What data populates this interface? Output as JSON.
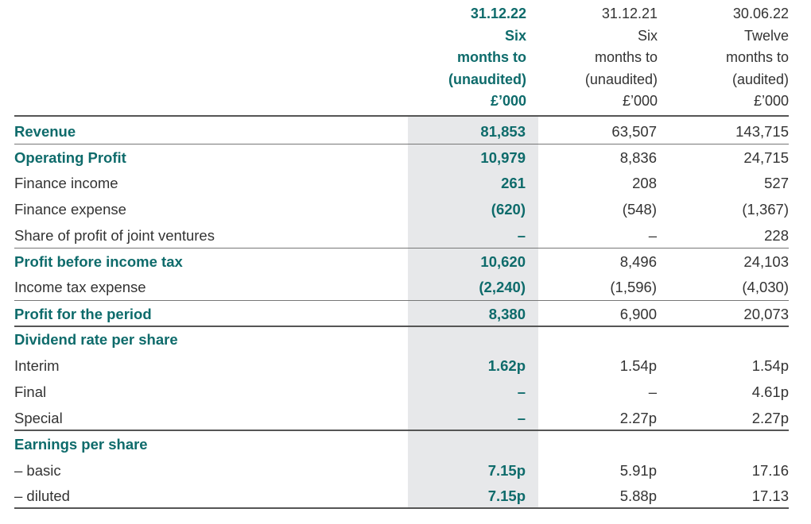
{
  "columns": [
    {
      "date": "31.12.22",
      "l1": "Six",
      "l2": "months to",
      "l3": "(unaudited)",
      "unit": "£’000"
    },
    {
      "date": "31.12.21",
      "l1": "Six",
      "l2": "months to",
      "l3": "(unaudited)",
      "unit": "£’000"
    },
    {
      "date": "30.06.22",
      "l1": "Twelve",
      "l2": "months to",
      "l3": "(audited)",
      "unit": "£’000"
    }
  ],
  "rows": [
    {
      "label": "Revenue",
      "v1": "81,853",
      "v2": "63,507",
      "v3": "143,715"
    },
    {
      "label": "Operating Profit",
      "v1": "10,979",
      "v2": "8,836",
      "v3": "24,715"
    },
    {
      "label": "Finance income",
      "v1": "261",
      "v2": "208",
      "v3": "527"
    },
    {
      "label": "Finance expense",
      "v1": "(620)",
      "v2": "(548)",
      "v3": "(1,367)"
    },
    {
      "label": "Share of profit of joint ventures",
      "v1": "–",
      "v2": "–",
      "v3": "228"
    },
    {
      "label": "Profit before income tax",
      "v1": "10,620",
      "v2": "8,496",
      "v3": "24,103"
    },
    {
      "label": "Income tax expense",
      "v1": "(2,240)",
      "v2": "(1,596)",
      "v3": "(4,030)"
    },
    {
      "label": "Profit for the period",
      "v1": "8,380",
      "v2": "6,900",
      "v3": "20,073"
    },
    {
      "label": "Dividend rate per share",
      "v1": "",
      "v2": "",
      "v3": ""
    },
    {
      "label": "Interim",
      "v1": "1.62p",
      "v2": "1.54p",
      "v3": "1.54p"
    },
    {
      "label": "Final",
      "v1": "–",
      "v2": "–",
      "v3": "4.61p"
    },
    {
      "label": "Special",
      "v1": "–",
      "v2": "2.27p",
      "v3": "2.27p"
    },
    {
      "label": "Earnings per share",
      "v1": "",
      "v2": "",
      "v3": ""
    },
    {
      "label": "– basic",
      "v1": "7.15p",
      "v2": "5.91p",
      "v3": "17.16"
    },
    {
      "label": "– diluted",
      "v1": "7.15p",
      "v2": "5.88p",
      "v3": "17.13"
    }
  ],
  "colors": {
    "accent": "#0e6b6b",
    "highlight_column": "#e7e8ea",
    "rule": "#555555"
  }
}
